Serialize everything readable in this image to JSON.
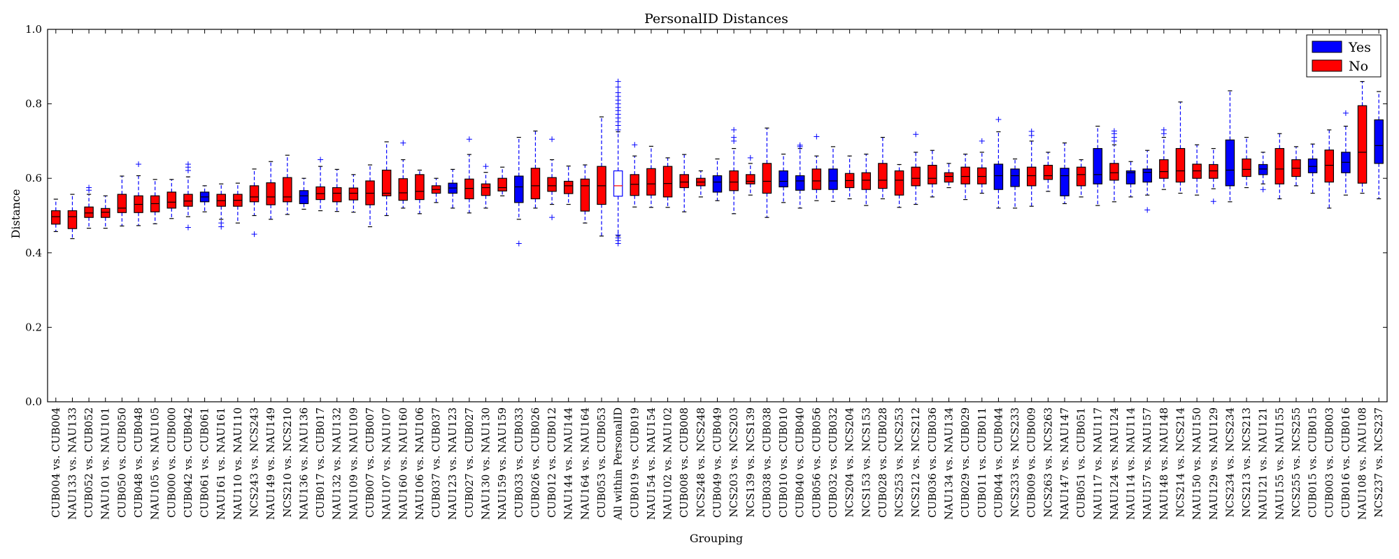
{
  "chart_data": {
    "type": "boxplot",
    "title": "PersonalID Distances",
    "xlabel": "Grouping",
    "ylabel": "Distance",
    "ylim": [
      0.0,
      1.0
    ],
    "yticks": [
      0.0,
      0.2,
      0.4,
      0.6,
      0.8,
      1.0
    ],
    "ytick_labels": [
      "0.0",
      "0.2",
      "0.4",
      "0.6",
      "0.8",
      "1.0"
    ],
    "grid": false,
    "legend": {
      "placement": "top-right",
      "entries": [
        {
          "label": "Yes",
          "color": "#0000ff"
        },
        {
          "label": "No",
          "color": "#ff0000"
        }
      ]
    },
    "colors": {
      "yes": "#0000ff",
      "no": "#ff0000",
      "reference_fill": "#ffffff",
      "reference_edge": "#0000ff",
      "median": "#000000",
      "reference_median": "#ff0000",
      "whisker": "#0000ff",
      "flier": "#0000ff"
    },
    "boxes": [
      {
        "label": "CUB004 vs. CUB004",
        "group": "No",
        "whislo": 0.457,
        "q1": 0.477,
        "med": 0.497,
        "q3": 0.513,
        "whishi": 0.544,
        "fliers": []
      },
      {
        "label": "NAU133 vs. NAU133",
        "group": "No",
        "whislo": 0.438,
        "q1": 0.465,
        "med": 0.497,
        "q3": 0.513,
        "whishi": 0.557,
        "fliers": []
      },
      {
        "label": "CUB052 vs. CUB052",
        "group": "No",
        "whislo": 0.466,
        "q1": 0.495,
        "med": 0.507,
        "q3": 0.523,
        "whishi": 0.557,
        "fliers": [
          0.575,
          0.568
        ]
      },
      {
        "label": "NAU101 vs. NAU101",
        "group": "No",
        "whislo": 0.466,
        "q1": 0.495,
        "med": 0.509,
        "q3": 0.519,
        "whishi": 0.553,
        "fliers": []
      },
      {
        "label": "CUB050 vs. CUB050",
        "group": "No",
        "whislo": 0.472,
        "q1": 0.508,
        "med": 0.52,
        "q3": 0.557,
        "whishi": 0.606,
        "fliers": []
      },
      {
        "label": "CUB048 vs. CUB048",
        "group": "No",
        "whislo": 0.473,
        "q1": 0.508,
        "med": 0.53,
        "q3": 0.553,
        "whishi": 0.607,
        "fliers": [
          0.638
        ]
      },
      {
        "label": "NAU105 vs. NAU105",
        "group": "No",
        "whislo": 0.478,
        "q1": 0.51,
        "med": 0.532,
        "q3": 0.553,
        "whishi": 0.597,
        "fliers": []
      },
      {
        "label": "CUB000 vs. CUB000",
        "group": "No",
        "whislo": 0.492,
        "q1": 0.52,
        "med": 0.536,
        "q3": 0.563,
        "whishi": 0.597,
        "fliers": []
      },
      {
        "label": "CUB042 vs. CUB042",
        "group": "No",
        "whislo": 0.497,
        "q1": 0.525,
        "med": 0.539,
        "q3": 0.557,
        "whishi": 0.604,
        "fliers": [
          0.468,
          0.621,
          0.63,
          0.638
        ]
      },
      {
        "label": "CUB061 vs. CUB061",
        "group": "Yes",
        "whislo": 0.51,
        "q1": 0.537,
        "med": 0.55,
        "q3": 0.563,
        "whishi": 0.58,
        "fliers": []
      },
      {
        "label": "NAU161 vs. NAU161",
        "group": "No",
        "whislo": 0.49,
        "q1": 0.525,
        "med": 0.54,
        "q3": 0.557,
        "whishi": 0.585,
        "fliers": [
          0.47,
          0.48
        ]
      },
      {
        "label": "NAU110 vs. NAU110",
        "group": "No",
        "whislo": 0.48,
        "q1": 0.525,
        "med": 0.541,
        "q3": 0.557,
        "whishi": 0.587,
        "fliers": []
      },
      {
        "label": "NCS243 vs. NCS243",
        "group": "No",
        "whislo": 0.5,
        "q1": 0.537,
        "med": 0.55,
        "q3": 0.58,
        "whishi": 0.625,
        "fliers": [
          0.45
        ]
      },
      {
        "label": "NAU149 vs. NAU149",
        "group": "No",
        "whislo": 0.49,
        "q1": 0.529,
        "med": 0.55,
        "q3": 0.588,
        "whishi": 0.645,
        "fliers": []
      },
      {
        "label": "NCS210 vs. NCS210",
        "group": "No",
        "whislo": 0.503,
        "q1": 0.537,
        "med": 0.55,
        "q3": 0.602,
        "whishi": 0.662,
        "fliers": []
      },
      {
        "label": "NAU136 vs. NAU136",
        "group": "Yes",
        "whislo": 0.517,
        "q1": 0.532,
        "med": 0.553,
        "q3": 0.567,
        "whishi": 0.6,
        "fliers": []
      },
      {
        "label": "CUB017 vs. CUB017",
        "group": "No",
        "whislo": 0.513,
        "q1": 0.543,
        "med": 0.559,
        "q3": 0.577,
        "whishi": 0.632,
        "fliers": [
          0.65
        ]
      },
      {
        "label": "NAU132 vs. NAU132",
        "group": "No",
        "whislo": 0.511,
        "q1": 0.537,
        "med": 0.56,
        "q3": 0.575,
        "whishi": 0.624,
        "fliers": []
      },
      {
        "label": "NAU109 vs. NAU109",
        "group": "No",
        "whislo": 0.509,
        "q1": 0.542,
        "med": 0.56,
        "q3": 0.574,
        "whishi": 0.61,
        "fliers": []
      },
      {
        "label": "CUB007 vs. CUB007",
        "group": "No",
        "whislo": 0.47,
        "q1": 0.529,
        "med": 0.56,
        "q3": 0.593,
        "whishi": 0.636,
        "fliers": []
      },
      {
        "label": "NAU107 vs. NAU107",
        "group": "No",
        "whislo": 0.5,
        "q1": 0.553,
        "med": 0.56,
        "q3": 0.622,
        "whishi": 0.698,
        "fliers": []
      },
      {
        "label": "NAU160 vs. NAU160",
        "group": "No",
        "whislo": 0.52,
        "q1": 0.541,
        "med": 0.561,
        "q3": 0.599,
        "whishi": 0.65,
        "fliers": [
          0.695
        ]
      },
      {
        "label": "NAU106 vs. NAU106",
        "group": "No",
        "whislo": 0.505,
        "q1": 0.543,
        "med": 0.565,
        "q3": 0.61,
        "whishi": 0.622,
        "fliers": []
      },
      {
        "label": "CUB037 vs. CUB037",
        "group": "No",
        "whislo": 0.535,
        "q1": 0.56,
        "med": 0.57,
        "q3": 0.58,
        "whishi": 0.6,
        "fliers": []
      },
      {
        "label": "NAU123 vs. NAU123",
        "group": "Yes",
        "whislo": 0.52,
        "q1": 0.56,
        "med": 0.574,
        "q3": 0.587,
        "whishi": 0.624,
        "fliers": []
      },
      {
        "label": "CUB027 vs. CUB027",
        "group": "No",
        "whislo": 0.507,
        "q1": 0.545,
        "med": 0.573,
        "q3": 0.598,
        "whishi": 0.664,
        "fliers": [
          0.705
        ]
      },
      {
        "label": "NAU130 vs. NAU130",
        "group": "No",
        "whislo": 0.52,
        "q1": 0.554,
        "med": 0.575,
        "q3": 0.585,
        "whishi": 0.616,
        "fliers": [
          0.632
        ]
      },
      {
        "label": "NAU159 vs. NAU159",
        "group": "No",
        "whislo": 0.553,
        "q1": 0.566,
        "med": 0.575,
        "q3": 0.6,
        "whishi": 0.63,
        "fliers": []
      },
      {
        "label": "CUB033 vs. CUB033",
        "group": "Yes",
        "whislo": 0.49,
        "q1": 0.535,
        "med": 0.577,
        "q3": 0.606,
        "whishi": 0.71,
        "fliers": [
          0.425
        ]
      },
      {
        "label": "CUB026 vs. CUB026",
        "group": "No",
        "whislo": 0.52,
        "q1": 0.545,
        "med": 0.58,
        "q3": 0.627,
        "whishi": 0.727,
        "fliers": []
      },
      {
        "label": "CUB012 vs. CUB012",
        "group": "No",
        "whislo": 0.53,
        "q1": 0.565,
        "med": 0.58,
        "q3": 0.602,
        "whishi": 0.65,
        "fliers": [
          0.495,
          0.705
        ]
      },
      {
        "label": "NAU144 vs. NAU144",
        "group": "No",
        "whislo": 0.53,
        "q1": 0.559,
        "med": 0.58,
        "q3": 0.592,
        "whishi": 0.633,
        "fliers": []
      },
      {
        "label": "NAU164 vs. NAU164",
        "group": "No",
        "whislo": 0.48,
        "q1": 0.512,
        "med": 0.58,
        "q3": 0.598,
        "whishi": 0.636,
        "fliers": []
      },
      {
        "label": "CUB053 vs. CUB053",
        "group": "No",
        "whislo": 0.445,
        "q1": 0.53,
        "med": 0.58,
        "q3": 0.632,
        "whishi": 0.765,
        "fliers": []
      },
      {
        "label": "All within PersonalID",
        "group": "Reference",
        "whislo": 0.445,
        "q1": 0.552,
        "med": 0.58,
        "q3": 0.62,
        "whishi": 0.725,
        "fliers": [
          0.425,
          0.433,
          0.44,
          0.448,
          0.73,
          0.742,
          0.752,
          0.762,
          0.772,
          0.782,
          0.79,
          0.8,
          0.81,
          0.82,
          0.83,
          0.845,
          0.86
        ]
      },
      {
        "label": "CUB019 vs. CUB019",
        "group": "No",
        "whislo": 0.523,
        "q1": 0.554,
        "med": 0.584,
        "q3": 0.61,
        "whishi": 0.66,
        "fliers": [
          0.69
        ]
      },
      {
        "label": "NAU154 vs. NAU154",
        "group": "No",
        "whislo": 0.522,
        "q1": 0.555,
        "med": 0.585,
        "q3": 0.626,
        "whishi": 0.686,
        "fliers": []
      },
      {
        "label": "NAU102 vs. NAU102",
        "group": "No",
        "whislo": 0.522,
        "q1": 0.55,
        "med": 0.586,
        "q3": 0.632,
        "whishi": 0.655,
        "fliers": []
      },
      {
        "label": "CUB008 vs. CUB008",
        "group": "No",
        "whislo": 0.51,
        "q1": 0.575,
        "med": 0.59,
        "q3": 0.61,
        "whishi": 0.664,
        "fliers": []
      },
      {
        "label": "NCS248 vs. NCS248",
        "group": "No",
        "whislo": 0.55,
        "q1": 0.58,
        "med": 0.59,
        "q3": 0.6,
        "whishi": 0.62,
        "fliers": []
      },
      {
        "label": "CUB049 vs. CUB049",
        "group": "Yes",
        "whislo": 0.54,
        "q1": 0.563,
        "med": 0.59,
        "q3": 0.607,
        "whishi": 0.652,
        "fliers": []
      },
      {
        "label": "NCS203 vs. NCS203",
        "group": "No",
        "whislo": 0.505,
        "q1": 0.567,
        "med": 0.59,
        "q3": 0.62,
        "whishi": 0.68,
        "fliers": [
          0.7,
          0.71,
          0.73
        ]
      },
      {
        "label": "NCS139 vs. NCS139",
        "group": "No",
        "whislo": 0.555,
        "q1": 0.585,
        "med": 0.592,
        "q3": 0.61,
        "whishi": 0.64,
        "fliers": [
          0.655
        ]
      },
      {
        "label": "CUB038 vs. CUB038",
        "group": "No",
        "whislo": 0.495,
        "q1": 0.56,
        "med": 0.592,
        "q3": 0.64,
        "whishi": 0.735,
        "fliers": []
      },
      {
        "label": "CUB010 vs. CUB010",
        "group": "Yes",
        "whislo": 0.535,
        "q1": 0.577,
        "med": 0.592,
        "q3": 0.62,
        "whishi": 0.665,
        "fliers": []
      },
      {
        "label": "CUB040 vs. CUB040",
        "group": "Yes",
        "whislo": 0.52,
        "q1": 0.568,
        "med": 0.593,
        "q3": 0.607,
        "whishi": 0.68,
        "fliers": [
          0.685,
          0.689
        ]
      },
      {
        "label": "CUB056 vs. CUB056",
        "group": "No",
        "whislo": 0.54,
        "q1": 0.57,
        "med": 0.593,
        "q3": 0.625,
        "whishi": 0.66,
        "fliers": [
          0.712
        ]
      },
      {
        "label": "CUB032 vs. CUB032",
        "group": "Yes",
        "whislo": 0.538,
        "q1": 0.57,
        "med": 0.593,
        "q3": 0.625,
        "whishi": 0.685,
        "fliers": []
      },
      {
        "label": "NCS204 vs. NCS204",
        "group": "No",
        "whislo": 0.545,
        "q1": 0.575,
        "med": 0.594,
        "q3": 0.613,
        "whishi": 0.66,
        "fliers": []
      },
      {
        "label": "NCS153 vs. NCS153",
        "group": "No",
        "whislo": 0.527,
        "q1": 0.57,
        "med": 0.595,
        "q3": 0.615,
        "whishi": 0.665,
        "fliers": []
      },
      {
        "label": "CUB028 vs. CUB028",
        "group": "No",
        "whislo": 0.545,
        "q1": 0.573,
        "med": 0.595,
        "q3": 0.64,
        "whishi": 0.71,
        "fliers": []
      },
      {
        "label": "NCS253 vs. NCS253",
        "group": "No",
        "whislo": 0.522,
        "q1": 0.555,
        "med": 0.595,
        "q3": 0.62,
        "whishi": 0.637,
        "fliers": []
      },
      {
        "label": "NCS212 vs. NCS212",
        "group": "No",
        "whislo": 0.53,
        "q1": 0.58,
        "med": 0.6,
        "q3": 0.63,
        "whishi": 0.67,
        "fliers": [
          0.718
        ]
      },
      {
        "label": "CUB036 vs. CUB036",
        "group": "No",
        "whislo": 0.55,
        "q1": 0.585,
        "med": 0.6,
        "q3": 0.635,
        "whishi": 0.675,
        "fliers": []
      },
      {
        "label": "NAU134 vs. NAU134",
        "group": "No",
        "whislo": 0.575,
        "q1": 0.59,
        "med": 0.605,
        "q3": 0.615,
        "whishi": 0.64,
        "fliers": []
      },
      {
        "label": "CUB029 vs. CUB029",
        "group": "No",
        "whislo": 0.543,
        "q1": 0.585,
        "med": 0.605,
        "q3": 0.63,
        "whishi": 0.665,
        "fliers": []
      },
      {
        "label": "CUB011 vs. CUB011",
        "group": "No",
        "whislo": 0.56,
        "q1": 0.585,
        "med": 0.605,
        "q3": 0.628,
        "whishi": 0.67,
        "fliers": [
          0.7
        ]
      },
      {
        "label": "CUB044 vs. CUB044",
        "group": "Yes",
        "whislo": 0.52,
        "q1": 0.57,
        "med": 0.607,
        "q3": 0.638,
        "whishi": 0.725,
        "fliers": [
          0.758
        ]
      },
      {
        "label": "NCS233 vs. NCS233",
        "group": "Yes",
        "whislo": 0.52,
        "q1": 0.578,
        "med": 0.607,
        "q3": 0.625,
        "whishi": 0.652,
        "fliers": []
      },
      {
        "label": "CUB009 vs. CUB009",
        "group": "No",
        "whislo": 0.525,
        "q1": 0.58,
        "med": 0.607,
        "q3": 0.63,
        "whishi": 0.7,
        "fliers": [
          0.715,
          0.726
        ]
      },
      {
        "label": "NCS263 vs. NCS263",
        "group": "No",
        "whislo": 0.565,
        "q1": 0.597,
        "med": 0.607,
        "q3": 0.635,
        "whishi": 0.67,
        "fliers": []
      },
      {
        "label": "NAU147 vs. NAU147",
        "group": "Yes",
        "whislo": 0.532,
        "q1": 0.553,
        "med": 0.607,
        "q3": 0.627,
        "whishi": 0.695,
        "fliers": []
      },
      {
        "label": "CUB051 vs. CUB051",
        "group": "No",
        "whislo": 0.55,
        "q1": 0.58,
        "med": 0.61,
        "q3": 0.63,
        "whishi": 0.65,
        "fliers": []
      },
      {
        "label": "NAU117 vs. NAU117",
        "group": "Yes",
        "whislo": 0.527,
        "q1": 0.585,
        "med": 0.61,
        "q3": 0.68,
        "whishi": 0.74,
        "fliers": []
      },
      {
        "label": "NAU124 vs. NAU124",
        "group": "No",
        "whislo": 0.537,
        "q1": 0.595,
        "med": 0.615,
        "q3": 0.64,
        "whishi": 0.69,
        "fliers": [
          0.7,
          0.71,
          0.72,
          0.727
        ]
      },
      {
        "label": "NAU114 vs. NAU114",
        "group": "Yes",
        "whislo": 0.55,
        "q1": 0.585,
        "med": 0.615,
        "q3": 0.62,
        "whishi": 0.645,
        "fliers": []
      },
      {
        "label": "NAU157 vs. NAU157",
        "group": "Yes",
        "whislo": 0.555,
        "q1": 0.59,
        "med": 0.616,
        "q3": 0.625,
        "whishi": 0.675,
        "fliers": [
          0.515
        ]
      },
      {
        "label": "NAU148 vs. NAU148",
        "group": "No",
        "whislo": 0.57,
        "q1": 0.6,
        "med": 0.618,
        "q3": 0.65,
        "whishi": 0.71,
        "fliers": [
          0.72,
          0.73
        ]
      },
      {
        "label": "NCS214 vs. NCS214",
        "group": "No",
        "whislo": 0.56,
        "q1": 0.59,
        "med": 0.62,
        "q3": 0.68,
        "whishi": 0.805,
        "fliers": []
      },
      {
        "label": "NAU150 vs. NAU150",
        "group": "No",
        "whislo": 0.555,
        "q1": 0.6,
        "med": 0.62,
        "q3": 0.638,
        "whishi": 0.69,
        "fliers": []
      },
      {
        "label": "NAU129 vs. NAU129",
        "group": "No",
        "whislo": 0.572,
        "q1": 0.6,
        "med": 0.62,
        "q3": 0.637,
        "whishi": 0.68,
        "fliers": [
          0.538
        ]
      },
      {
        "label": "NCS234 vs. NCS234",
        "group": "Yes",
        "whislo": 0.537,
        "q1": 0.58,
        "med": 0.622,
        "q3": 0.703,
        "whishi": 0.835,
        "fliers": []
      },
      {
        "label": "NCS213 vs. NCS213",
        "group": "No",
        "whislo": 0.575,
        "q1": 0.605,
        "med": 0.624,
        "q3": 0.652,
        "whishi": 0.71,
        "fliers": []
      },
      {
        "label": "NAU121 vs. NAU121",
        "group": "Yes",
        "whislo": 0.585,
        "q1": 0.61,
        "med": 0.625,
        "q3": 0.637,
        "whishi": 0.67,
        "fliers": [
          0.57
        ]
      },
      {
        "label": "NAU155 vs. NAU155",
        "group": "No",
        "whislo": 0.545,
        "q1": 0.585,
        "med": 0.625,
        "q3": 0.68,
        "whishi": 0.72,
        "fliers": []
      },
      {
        "label": "NCS255 vs. NCS255",
        "group": "No",
        "whislo": 0.58,
        "q1": 0.605,
        "med": 0.627,
        "q3": 0.65,
        "whishi": 0.685,
        "fliers": []
      },
      {
        "label": "CUB015 vs. CUB015",
        "group": "Yes",
        "whislo": 0.56,
        "q1": 0.615,
        "med": 0.632,
        "q3": 0.652,
        "whishi": 0.692,
        "fliers": []
      },
      {
        "label": "CUB003 vs. CUB003",
        "group": "No",
        "whislo": 0.52,
        "q1": 0.59,
        "med": 0.635,
        "q3": 0.676,
        "whishi": 0.73,
        "fliers": []
      },
      {
        "label": "CUB016 vs. CUB016",
        "group": "Yes",
        "whislo": 0.555,
        "q1": 0.615,
        "med": 0.643,
        "q3": 0.67,
        "whishi": 0.74,
        "fliers": [
          0.775
        ]
      },
      {
        "label": "NAU108 vs. NAU108",
        "group": "No",
        "whislo": 0.56,
        "q1": 0.587,
        "med": 0.67,
        "q3": 0.795,
        "whishi": 0.86,
        "fliers": []
      },
      {
        "label": "NCS237 vs. NCS237",
        "group": "Yes",
        "whislo": 0.545,
        "q1": 0.64,
        "med": 0.688,
        "q3": 0.757,
        "whishi": 0.833,
        "fliers": []
      }
    ]
  }
}
